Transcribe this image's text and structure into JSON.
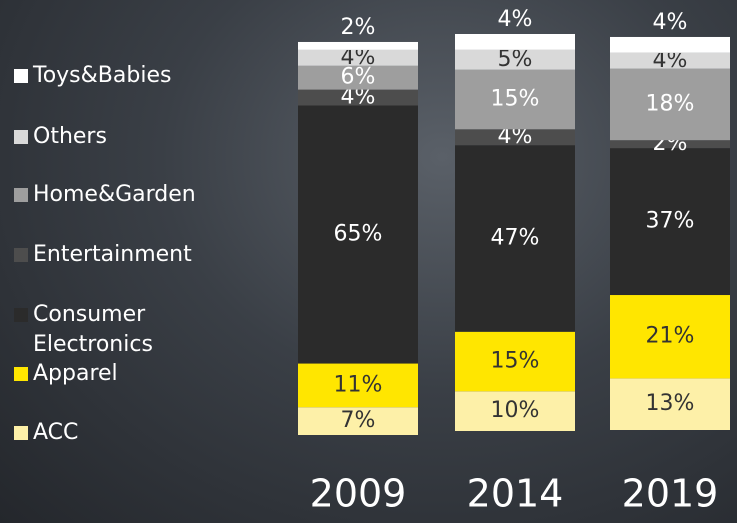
{
  "chart_data": {
    "type": "stacked-bar",
    "categories": [
      "2009",
      "2014",
      "2019"
    ],
    "series": [
      {
        "name": "ACC",
        "color": "#fdf0a8",
        "values": [
          7,
          10,
          13
        ],
        "value_labels": [
          "7%",
          "10%",
          "13%"
        ]
      },
      {
        "name": "Apparel",
        "color": "#ffe600",
        "values": [
          11,
          15,
          21
        ],
        "value_labels": [
          "11%",
          "15%",
          "21%"
        ]
      },
      {
        "name": "Consumer Electronics",
        "color": "#2b2b2b",
        "values": [
          65,
          47,
          37
        ],
        "value_labels": [
          "65%",
          "47%",
          "37%"
        ]
      },
      {
        "name": "Entertainment",
        "color": "#4d4d4d",
        "values": [
          4,
          4,
          2
        ],
        "value_labels": [
          "4%",
          "4%",
          "2%"
        ]
      },
      {
        "name": "Home&Garden",
        "color": "#9e9e9e",
        "values": [
          6,
          15,
          18
        ],
        "value_labels": [
          "6%",
          "15%",
          "18%"
        ]
      },
      {
        "name": "Others",
        "color": "#d9d9d9",
        "values": [
          4,
          5,
          4
        ],
        "value_labels": [
          "4%",
          "5%",
          "4%"
        ]
      },
      {
        "name": "Toys&Babies",
        "color": "#ffffff",
        "values": [
          2,
          4,
          4
        ],
        "value_labels": [
          "2%",
          "4%",
          "4%"
        ]
      }
    ]
  }
}
